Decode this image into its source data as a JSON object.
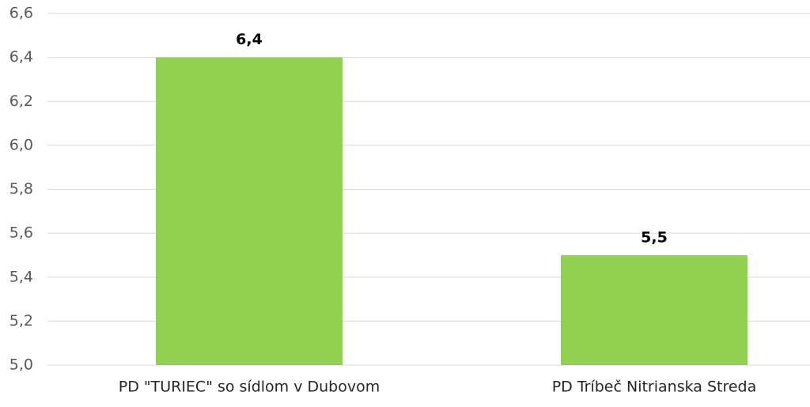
{
  "chart_data": {
    "type": "bar",
    "categories": [
      "PD \"TURIEC\" so sídlom v Dubovom",
      "PD Tríbeč Nitrianska Streda"
    ],
    "values": [
      6.4,
      5.5
    ],
    "value_labels": [
      "6,4",
      "5,5"
    ],
    "color": "#92d050",
    "ylim": [
      5.0,
      6.6
    ],
    "yticks": [
      {
        "value": 5.0,
        "label": "5,0"
      },
      {
        "value": 5.2,
        "label": "5,2"
      },
      {
        "value": 5.4,
        "label": "5,4"
      },
      {
        "value": 5.6,
        "label": "5,6"
      },
      {
        "value": 5.8,
        "label": "5,8"
      },
      {
        "value": 6.0,
        "label": "6,0"
      },
      {
        "value": 6.2,
        "label": "6,2"
      },
      {
        "value": 6.4,
        "label": "6,4"
      },
      {
        "value": 6.6,
        "label": "6,6"
      }
    ],
    "grid": true
  }
}
